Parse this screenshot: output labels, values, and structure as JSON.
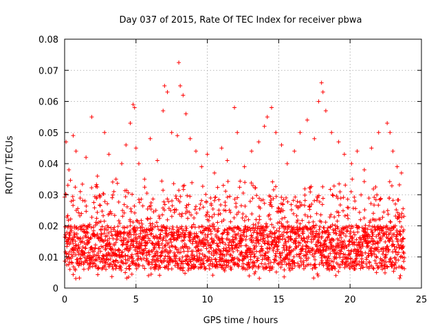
{
  "chart_data": {
    "type": "scatter",
    "title": "Day 037 of 2015, Rate Of TEC Index for receiver pbwa",
    "xlabel": "GPS time / hours",
    "ylabel": "ROTI / TECUs",
    "xlim": [
      0,
      25
    ],
    "ylim": [
      0,
      0.08
    ],
    "x_ticks": [
      "0",
      "5",
      "10",
      "15",
      "20",
      "25"
    ],
    "y_ticks": [
      "0",
      "0.01",
      "0.02",
      "0.03",
      "0.04",
      "0.05",
      "0.06",
      "0.07",
      "0.08"
    ],
    "grid": true,
    "legend": "none",
    "marker": "plus",
    "color": "#ff0000",
    "x_data_range": [
      0,
      23.8
    ],
    "series": [
      {
        "x": [
          0.1,
          0.3,
          0.6,
          0.8,
          1.1,
          1.5,
          1.9,
          2.3,
          2.8,
          3.1,
          3.6,
          4.0,
          4.3,
          4.6,
          4.8,
          4.9,
          5.0,
          5.2,
          5.6,
          6.0,
          6.5,
          6.9,
          7.0,
          7.2,
          7.5,
          7.9,
          8.0,
          8.1,
          8.3,
          8.5,
          8.8,
          9.2,
          9.6,
          10.0,
          10.5,
          11.0,
          11.4,
          11.9,
          12.1,
          12.6,
          13.1,
          13.6,
          14.0,
          14.2,
          14.5,
          14.8,
          15.2,
          15.6,
          16.1,
          16.5,
          17.0,
          17.5,
          17.8,
          18.0,
          18.1,
          18.3,
          18.7,
          19.2,
          19.6,
          20.1,
          20.5,
          21.0,
          21.5,
          22.0,
          22.6,
          22.8,
          23.0,
          23.3,
          23.6
        ],
        "y": [
          0.047,
          0.038,
          0.049,
          0.044,
          0.031,
          0.042,
          0.055,
          0.036,
          0.05,
          0.043,
          0.035,
          0.04,
          0.046,
          0.053,
          0.059,
          0.058,
          0.045,
          0.04,
          0.035,
          0.048,
          0.041,
          0.057,
          0.065,
          0.063,
          0.05,
          0.049,
          0.0725,
          0.065,
          0.062,
          0.056,
          0.048,
          0.044,
          0.039,
          0.043,
          0.037,
          0.045,
          0.041,
          0.058,
          0.05,
          0.039,
          0.044,
          0.047,
          0.052,
          0.055,
          0.058,
          0.05,
          0.046,
          0.04,
          0.044,
          0.05,
          0.054,
          0.048,
          0.06,
          0.066,
          0.063,
          0.057,
          0.05,
          0.047,
          0.043,
          0.04,
          0.044,
          0.038,
          0.045,
          0.05,
          0.053,
          0.05,
          0.044,
          0.039,
          0.037
        ]
      }
    ]
  }
}
